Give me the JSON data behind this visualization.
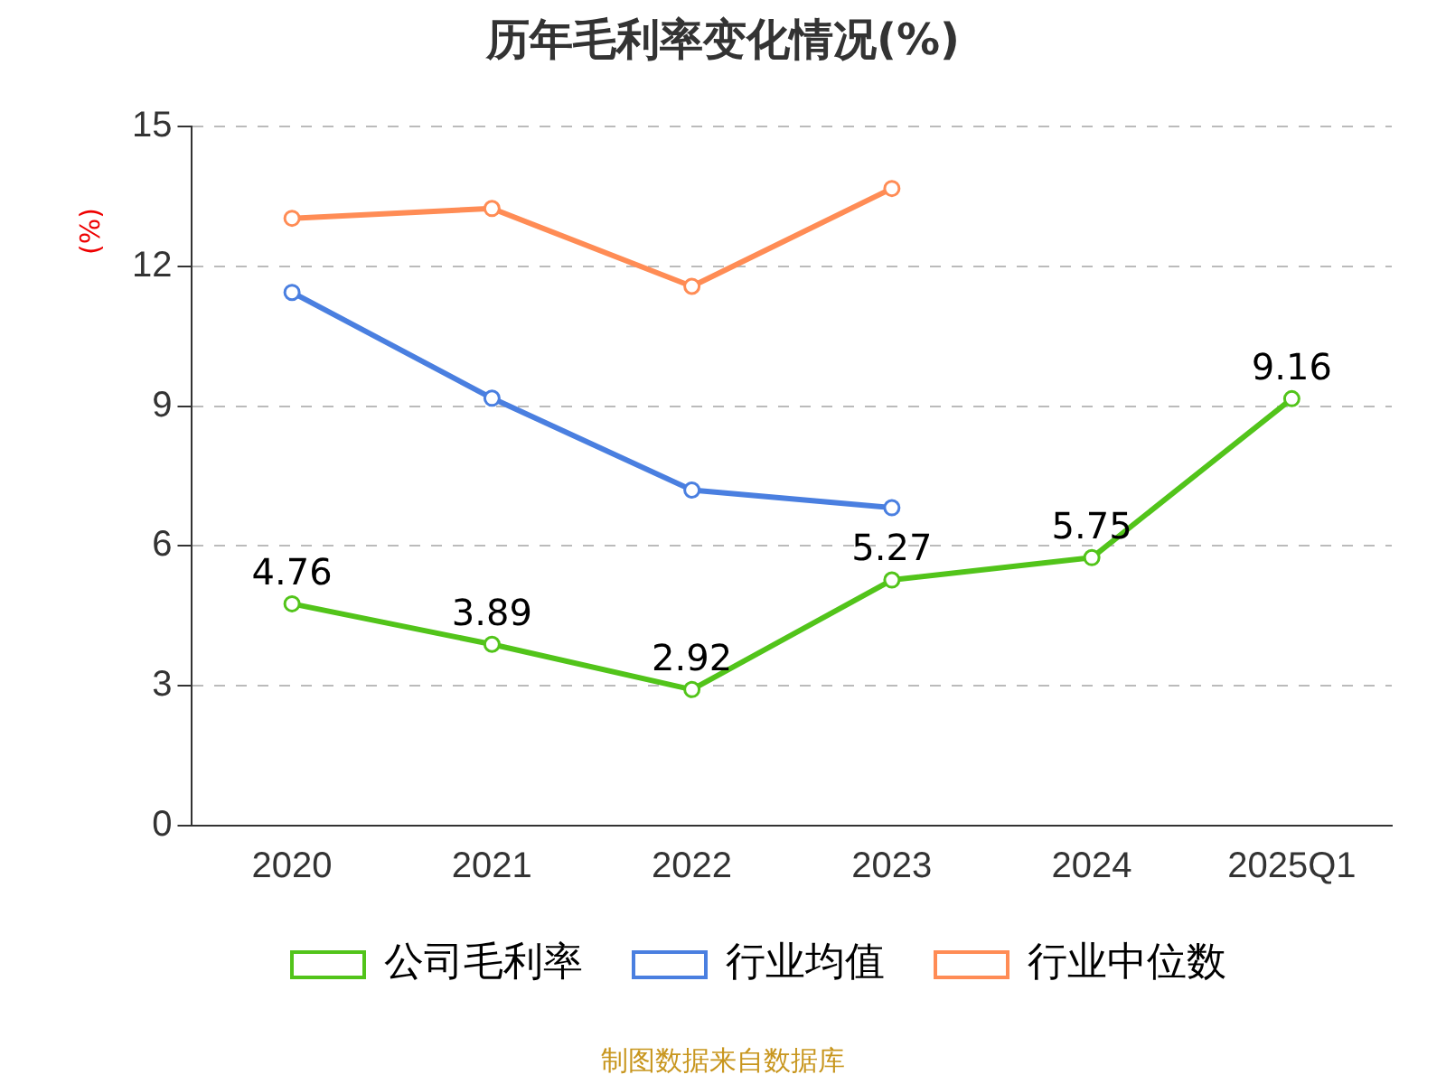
{
  "chart_data": {
    "type": "line",
    "title": "历年毛利率变化情况(%)",
    "ylabel": "(%)",
    "categories": [
      "2020",
      "2021",
      "2022",
      "2023",
      "2024",
      "2025Q1"
    ],
    "series": [
      {
        "name": "公司毛利率",
        "color": "#52c41a",
        "values": [
          4.76,
          3.89,
          2.92,
          5.27,
          5.75,
          9.16
        ],
        "value_labels": [
          "4.76",
          "3.89",
          "2.92",
          "5.27",
          "5.75",
          "9.16"
        ]
      },
      {
        "name": "行业均值",
        "color": "#4a7fe0",
        "values": [
          11.44,
          9.17,
          7.2,
          6.82,
          null,
          null
        ]
      },
      {
        "name": "行业中位数",
        "color": "#ff8c55",
        "values": [
          13.03,
          13.24,
          11.57,
          13.67,
          null,
          null
        ]
      }
    ],
    "ylim": [
      0,
      15
    ],
    "yticks": [
      0,
      3,
      6,
      9,
      12,
      15
    ],
    "grid": "y",
    "legend": "bottom",
    "marker": "circle",
    "line_style": "solid",
    "annotations": [
      "制图数据来自数据库"
    ]
  }
}
